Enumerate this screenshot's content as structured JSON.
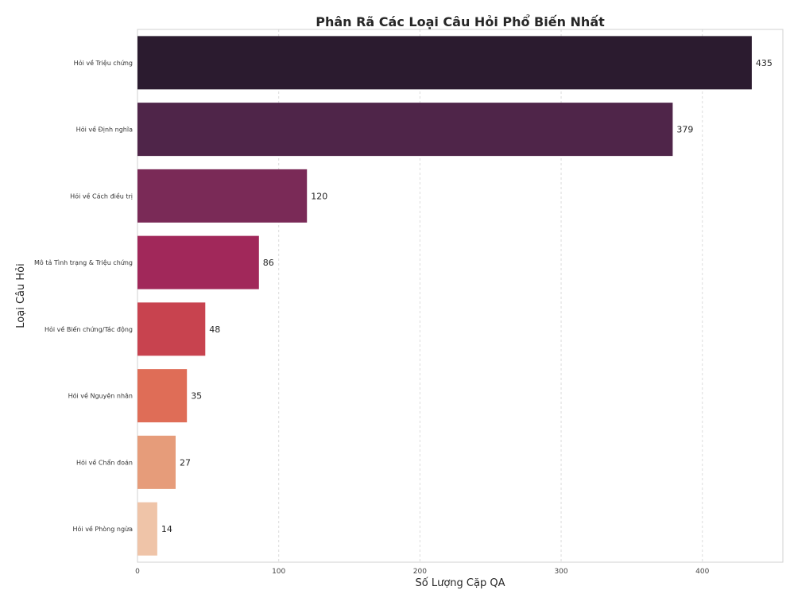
{
  "chart_data": {
    "type": "bar",
    "orientation": "horizontal",
    "title": "Phân Rã Các Loại Câu Hỏi Phổ Biến Nhất",
    "xlabel": "Số Lượng Cặp QA",
    "ylabel": "Loại Câu Hỏi",
    "categories": [
      "Hỏi về Triệu chứng",
      "Hỏi về Định nghĩa",
      "Hỏi về Cách điều trị",
      "Mô tả Tình trạng & Triệu chứng",
      "Hỏi về Biến chứng/Tác động",
      "Hỏi về Nguyên nhân",
      "Hỏi về Chẩn đoán",
      "Hỏi về Phòng ngừa"
    ],
    "values": [
      435,
      379,
      120,
      86,
      48,
      35,
      27,
      14
    ],
    "colors": [
      "#2b1b2f",
      "#4f2549",
      "#7a2a57",
      "#a1285a",
      "#c8434f",
      "#df6d57",
      "#e69c7a",
      "#efc4a8"
    ],
    "xlim": [
      0,
      457
    ],
    "xticks": [
      0,
      100,
      200,
      300,
      400
    ],
    "grid": true,
    "data_labels": true
  }
}
